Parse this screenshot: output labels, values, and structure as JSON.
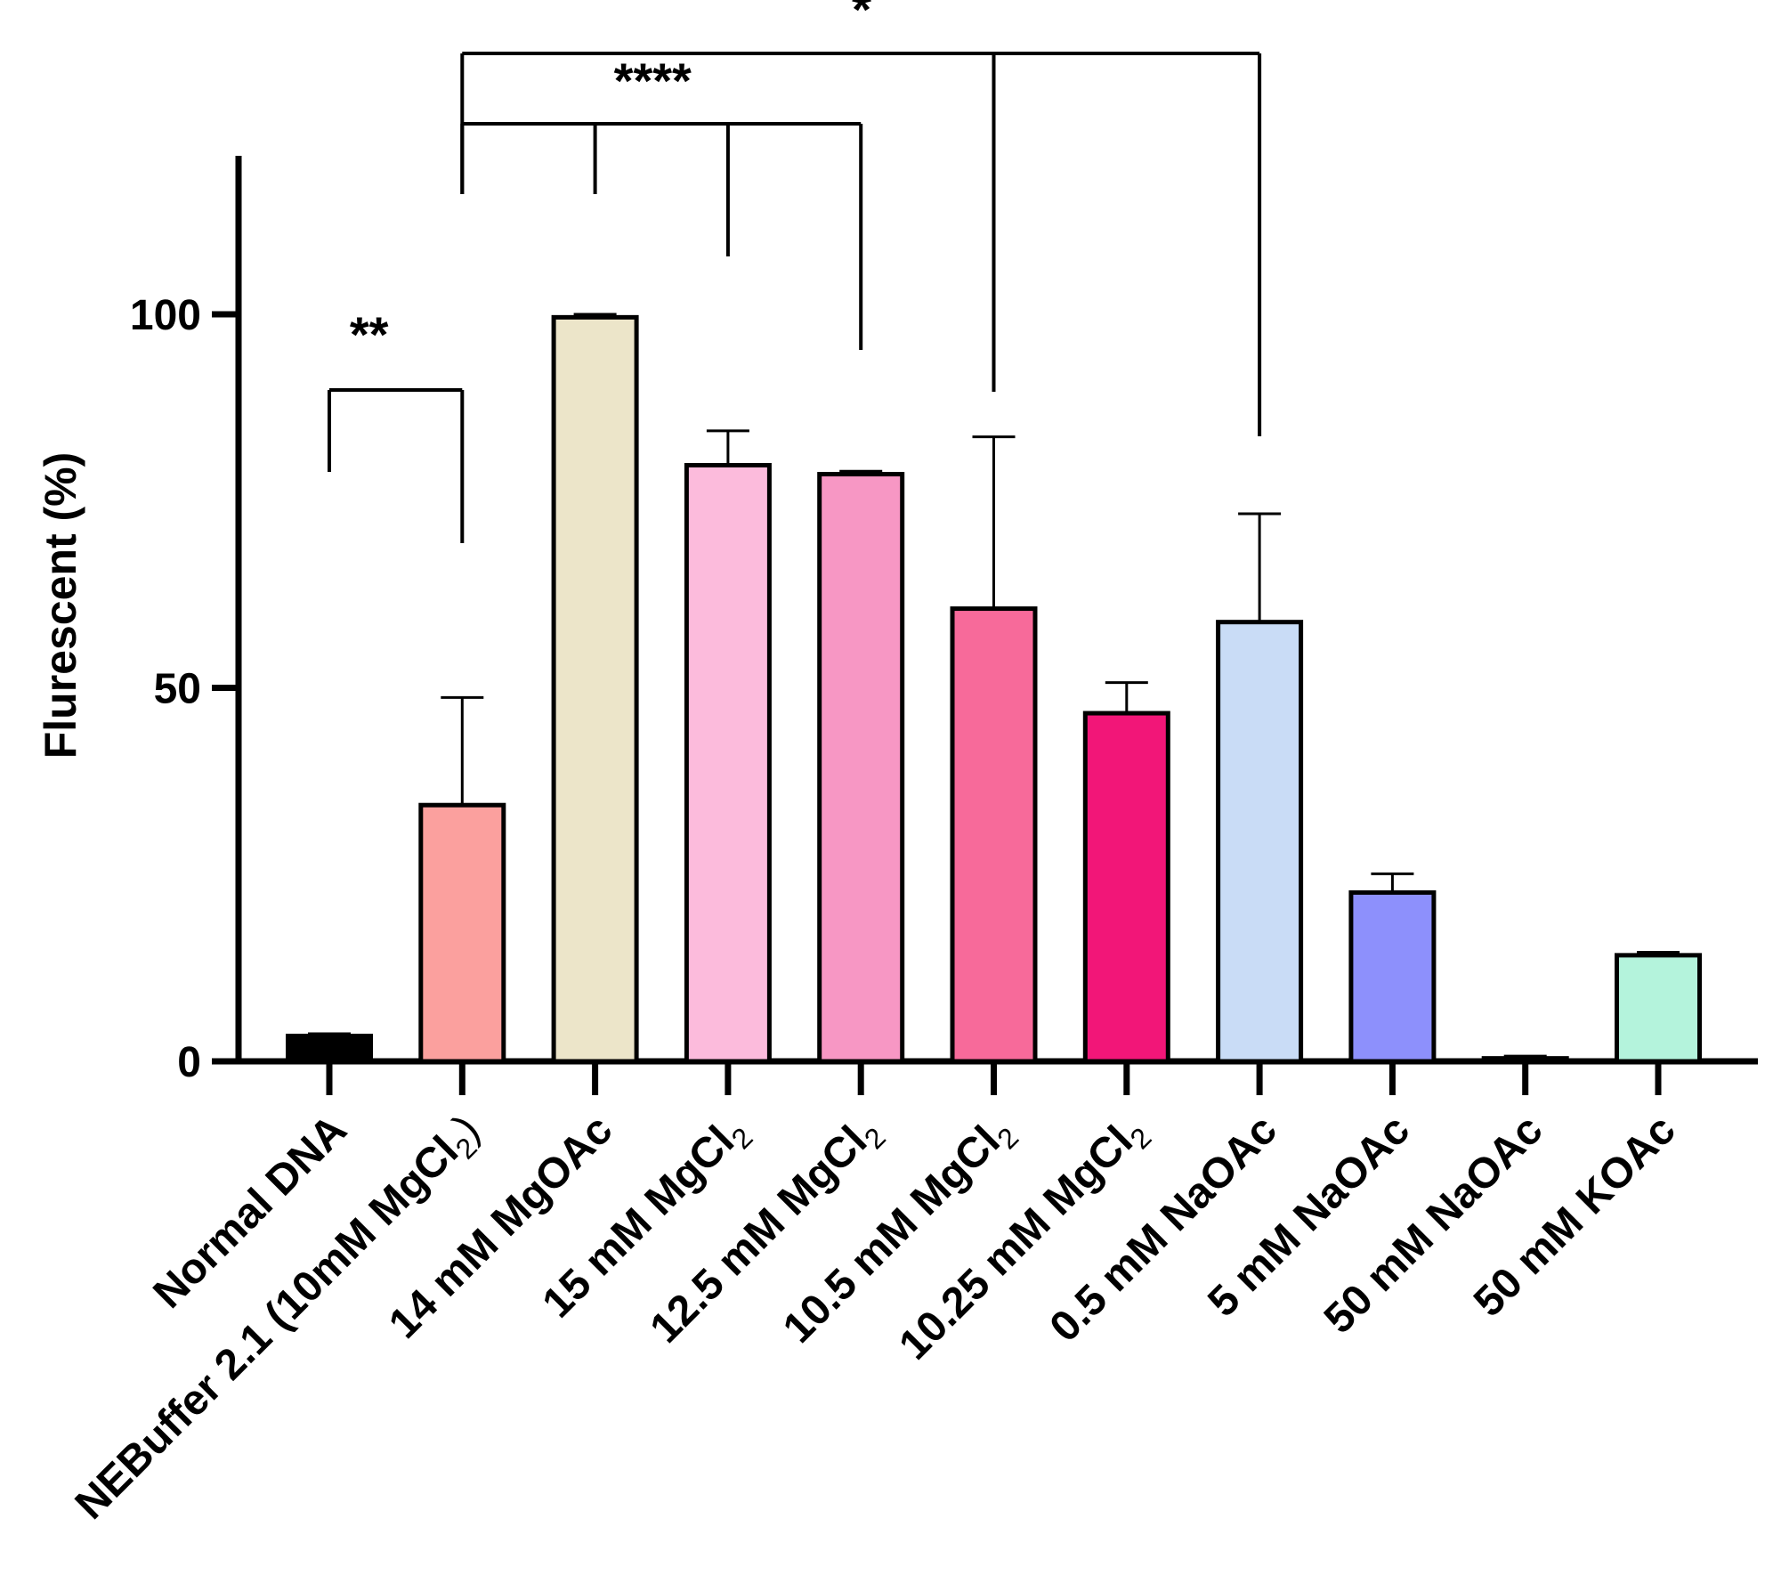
{
  "chart_data": {
    "type": "bar",
    "ylabel": "Flurescent (%)",
    "ylim": [
      0,
      100
    ],
    "yticks": [
      "0",
      "50",
      "100"
    ],
    "legend": "none",
    "grid": false,
    "categories": [
      {
        "main": "Normal DNA",
        "sub": "",
        "tail": ""
      },
      {
        "main": "NEBuffer 2.1 (10mM MgCl",
        "sub": "2",
        "tail": ")"
      },
      {
        "main": "14 mM MgOAc",
        "sub": "",
        "tail": ""
      },
      {
        "main": "15 mM MgCl",
        "sub": "2",
        "tail": ""
      },
      {
        "main": "12.5 mM MgCl",
        "sub": "2",
        "tail": ""
      },
      {
        "main": "10.5 mM MgCl",
        "sub": "2",
        "tail": ""
      },
      {
        "main": "10.25 mM MgCl",
        "sub": "2",
        "tail": ""
      },
      {
        "main": "0.5 mM NaOAc",
        "sub": "",
        "tail": ""
      },
      {
        "main": "5 mM NaOAc",
        "sub": "",
        "tail": ""
      },
      {
        "main": "50 mM NaOAc",
        "sub": "",
        "tail": ""
      },
      {
        "main": "50 mM KOAc",
        "sub": "",
        "tail": ""
      }
    ],
    "values": [
      3.4,
      34.3,
      99.6,
      79.8,
      78.6,
      60.6,
      46.6,
      58.8,
      22.6,
      0.4,
      14.2
    ],
    "errors": [
      0.3,
      14.4,
      0.4,
      4.6,
      0.4,
      23.0,
      4.1,
      14.5,
      2.5,
      0.3,
      0.4
    ],
    "colors": [
      "#000000",
      "#fba09e",
      "#ece5c9",
      "#fcbbdc",
      "#f797c4",
      "#f76a9a",
      "#f21678",
      "#c9dcf6",
      "#8d90fc",
      "#000000",
      "#b4f3dc"
    ],
    "significance": [
      {
        "label": "**",
        "from": 0,
        "to": [
          1
        ]
      },
      {
        "label": "****",
        "from": 1,
        "to": [
          2,
          3,
          4
        ]
      },
      {
        "label": "*",
        "from": 1,
        "to": [
          5,
          7
        ]
      }
    ]
  }
}
